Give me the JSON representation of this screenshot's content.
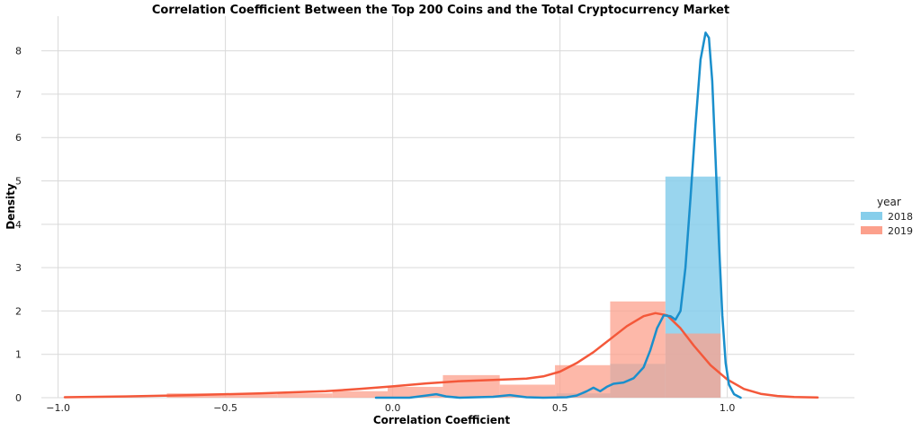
{
  "chart_data": {
    "type": "histogram-kde",
    "title": "Correlation Coefficient Between the Top 200 Coins and the Total Cryptocurrency Market",
    "xlabel": "Correlation Coefficient",
    "ylabel": "Density",
    "xlim": [
      -1.05,
      1.38
    ],
    "ylim": [
      0,
      8.8
    ],
    "x_ticks": [
      -1.0,
      -0.5,
      0.0,
      0.5,
      1.0
    ],
    "x_tick_labels": [
      "−1.0",
      "−0.5",
      "0.0",
      "0.5",
      "1.0"
    ],
    "y_ticks": [
      0,
      1,
      2,
      3,
      4,
      5,
      6,
      7,
      8
    ],
    "y_tick_labels": [
      "0",
      "1",
      "2",
      "3",
      "4",
      "5",
      "6",
      "7",
      "8"
    ],
    "grid": true,
    "legend": {
      "title": "year",
      "placement": "right"
    },
    "series": [
      {
        "name": "2018",
        "bar_color": "#87ceeb",
        "line_color": "#1a8fcc",
        "bins": [
          {
            "x0": 0.49,
            "x1": 0.65,
            "density": 0.1
          },
          {
            "x0": 0.65,
            "x1": 0.815,
            "density": 0.78
          },
          {
            "x0": 0.815,
            "x1": 0.98,
            "density": 5.1
          }
        ],
        "kde": [
          [
            -0.05,
            0.0
          ],
          [
            0.05,
            0.0
          ],
          [
            0.1,
            0.05
          ],
          [
            0.13,
            0.08
          ],
          [
            0.16,
            0.03
          ],
          [
            0.2,
            0.0
          ],
          [
            0.3,
            0.02
          ],
          [
            0.35,
            0.06
          ],
          [
            0.4,
            0.01
          ],
          [
            0.45,
            0.0
          ],
          [
            0.52,
            0.01
          ],
          [
            0.55,
            0.05
          ],
          [
            0.58,
            0.15
          ],
          [
            0.6,
            0.23
          ],
          [
            0.62,
            0.15
          ],
          [
            0.64,
            0.25
          ],
          [
            0.66,
            0.32
          ],
          [
            0.69,
            0.35
          ],
          [
            0.72,
            0.45
          ],
          [
            0.75,
            0.7
          ],
          [
            0.77,
            1.1
          ],
          [
            0.79,
            1.6
          ],
          [
            0.81,
            1.9
          ],
          [
            0.83,
            1.88
          ],
          [
            0.845,
            1.8
          ],
          [
            0.86,
            2.0
          ],
          [
            0.875,
            3.0
          ],
          [
            0.89,
            4.6
          ],
          [
            0.905,
            6.3
          ],
          [
            0.92,
            7.8
          ],
          [
            0.935,
            8.42
          ],
          [
            0.945,
            8.3
          ],
          [
            0.955,
            7.3
          ],
          [
            0.965,
            5.5
          ],
          [
            0.975,
            3.6
          ],
          [
            0.985,
            1.9
          ],
          [
            0.995,
            0.8
          ],
          [
            1.005,
            0.3
          ],
          [
            1.02,
            0.08
          ],
          [
            1.04,
            0.0
          ]
        ]
      },
      {
        "name": "2019",
        "bar_color": "#fca08c",
        "line_color": "#f4583a",
        "bins": [
          {
            "x0": -0.675,
            "x1": -0.51,
            "density": 0.1
          },
          {
            "x0": -0.51,
            "x1": -0.345,
            "density": 0.08
          },
          {
            "x0": -0.345,
            "x1": -0.18,
            "density": 0.1
          },
          {
            "x0": -0.18,
            "x1": -0.015,
            "density": 0.15
          },
          {
            "x0": -0.015,
            "x1": 0.15,
            "density": 0.25
          },
          {
            "x0": 0.15,
            "x1": 0.32,
            "density": 0.52
          },
          {
            "x0": 0.32,
            "x1": 0.485,
            "density": 0.3
          },
          {
            "x0": 0.485,
            "x1": 0.65,
            "density": 0.75
          },
          {
            "x0": 0.65,
            "x1": 0.815,
            "density": 2.22
          },
          {
            "x0": 0.815,
            "x1": 0.98,
            "density": 1.48
          }
        ],
        "kde": [
          [
            -0.98,
            0.01
          ],
          [
            -0.8,
            0.03
          ],
          [
            -0.6,
            0.06
          ],
          [
            -0.4,
            0.1
          ],
          [
            -0.2,
            0.15
          ],
          [
            -0.1,
            0.2
          ],
          [
            0.0,
            0.26
          ],
          [
            0.1,
            0.33
          ],
          [
            0.2,
            0.38
          ],
          [
            0.3,
            0.41
          ],
          [
            0.4,
            0.44
          ],
          [
            0.45,
            0.49
          ],
          [
            0.5,
            0.6
          ],
          [
            0.55,
            0.8
          ],
          [
            0.6,
            1.05
          ],
          [
            0.65,
            1.35
          ],
          [
            0.7,
            1.65
          ],
          [
            0.75,
            1.88
          ],
          [
            0.785,
            1.95
          ],
          [
            0.82,
            1.9
          ],
          [
            0.86,
            1.6
          ],
          [
            0.9,
            1.2
          ],
          [
            0.95,
            0.75
          ],
          [
            1.0,
            0.42
          ],
          [
            1.05,
            0.2
          ],
          [
            1.1,
            0.09
          ],
          [
            1.15,
            0.04
          ],
          [
            1.2,
            0.015
          ],
          [
            1.27,
            0.005
          ]
        ]
      }
    ]
  }
}
